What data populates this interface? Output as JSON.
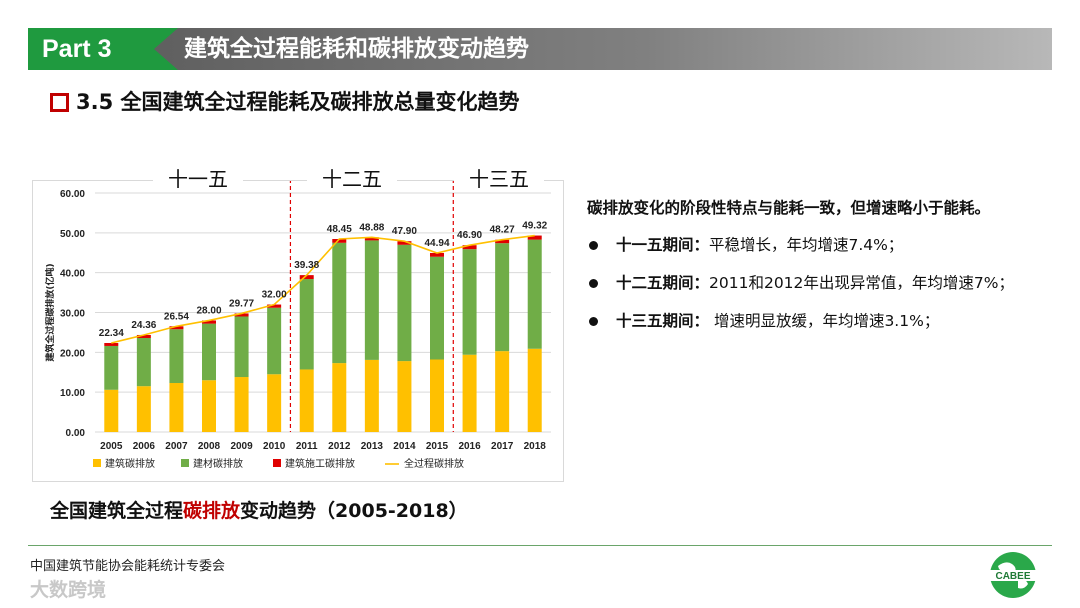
{
  "header": {
    "part_label": "Part 3",
    "title": "建筑全过程能耗和碳排放变动趋势"
  },
  "subtitle": "3.5  全国建筑全过程能耗及碳排放总量变化趋势",
  "periods": [
    "十一五",
    "十二五",
    "十三五"
  ],
  "chart_data": {
    "type": "bar",
    "stacked": true,
    "categories": [
      "2005",
      "2006",
      "2007",
      "2008",
      "2009",
      "2010",
      "2011",
      "2012",
      "2013",
      "2014",
      "2015",
      "2016",
      "2017",
      "2018"
    ],
    "series": [
      {
        "name": "建筑碳排放",
        "color": "#ffc000",
        "values": [
          10.6,
          11.5,
          12.3,
          13.0,
          13.8,
          14.5,
          15.7,
          17.3,
          18.1,
          17.8,
          18.2,
          19.4,
          20.3,
          20.9
        ]
      },
      {
        "name": "建材碳排放",
        "color": "#70ad47",
        "values": [
          11.0,
          12.1,
          13.5,
          14.2,
          15.2,
          16.7,
          22.7,
          30.2,
          30.0,
          29.2,
          25.8,
          26.5,
          27.1,
          27.4
        ]
      },
      {
        "name": "建筑施工碳排放",
        "color": "#e00000",
        "values": [
          0.74,
          0.76,
          0.74,
          0.8,
          0.77,
          0.8,
          0.98,
          0.95,
          0.78,
          0.9,
          0.94,
          1.0,
          0.87,
          1.02
        ]
      },
      {
        "name": "全过程碳排放",
        "color": "#ffc000",
        "type": "line",
        "values": [
          22.34,
          24.36,
          26.54,
          28.0,
          29.77,
          32.0,
          39.38,
          48.45,
          48.88,
          47.9,
          44.94,
          46.9,
          48.27,
          49.32
        ]
      }
    ],
    "total_labels": [
      "22.34",
      "24.36",
      "26.54",
      "28.00",
      "29.77",
      "32.00",
      "39.38",
      "48.45",
      "48.88",
      "47.90",
      "44.94",
      "46.90",
      "48.27",
      "49.32"
    ],
    "ylabel": "建筑全过程碳排放(亿吨)",
    "ylim": [
      0,
      60
    ],
    "yticks": [
      "0.00",
      "10.00",
      "20.00",
      "30.00",
      "40.00",
      "50.00",
      "60.00"
    ],
    "period_dividers_after": [
      "2010",
      "2015"
    ],
    "legend_position": "bottom"
  },
  "description": {
    "intro": "碳排放变化的阶段性特点与能耗一致，但增速略小于能耗。",
    "items": [
      {
        "label": "十一五期间：",
        "text": "平稳增长，年均增速7.4%；"
      },
      {
        "label": "十二五期间：",
        "text": "2011和2012年出现异常值，年均增速7%；"
      },
      {
        "label": "十三五期间：",
        "text": " 增速明显放缓，年均增速3.1%；"
      }
    ]
  },
  "caption": {
    "pre": "全国建筑全过程",
    "highlight": "碳排放",
    "post": "变动趋势（2005-2018）"
  },
  "footer": "中国建筑节能协会能耗统计专委会",
  "watermark": "大数跨境",
  "logo_text": "CABEE"
}
